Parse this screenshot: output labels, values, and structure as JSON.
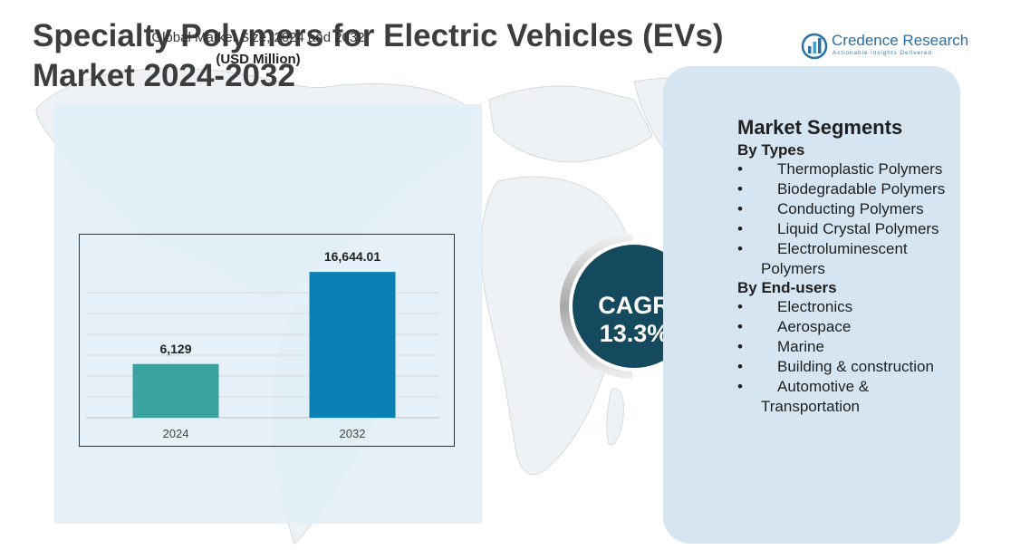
{
  "title": {
    "line1": "Specialty Polymers for Electric Vehicles (EVs)",
    "line2": "Market  2024-2032"
  },
  "logo": {
    "name": "Credence Research",
    "tagline": "Actionable Insights Delivered",
    "icon": "bar-chart-circle-icon"
  },
  "chart_data": {
    "type": "bar",
    "title": "Global Market Size, 2024 and 2032",
    "unit_label": "(USD Million)",
    "categories": [
      "2024",
      "2032"
    ],
    "values": [
      6129,
      16644.01
    ],
    "value_labels": [
      "6,129",
      "16,644.01"
    ],
    "colors": [
      "#3aa3a0",
      "#0a80b5"
    ],
    "ylim": [
      0,
      21000
    ],
    "grid": true,
    "legend": "none"
  },
  "cagr": {
    "label": "CAGR",
    "value": "13.3%",
    "color": "#15495e"
  },
  "segments": {
    "title": "Market Segments",
    "bullet": "•",
    "groups": [
      {
        "name": "By Types",
        "items": [
          "Thermoplastic Polymers",
          "Biodegradable Polymers",
          "Conducting Polymers",
          "Liquid Crystal Polymers",
          "Electroluminescent Polymers"
        ]
      },
      {
        "name": "By End-users",
        "items": [
          "Electronics",
          "Aerospace",
          "Marine",
          "Building & construction",
          "Automotive & Transportation"
        ]
      }
    ]
  }
}
